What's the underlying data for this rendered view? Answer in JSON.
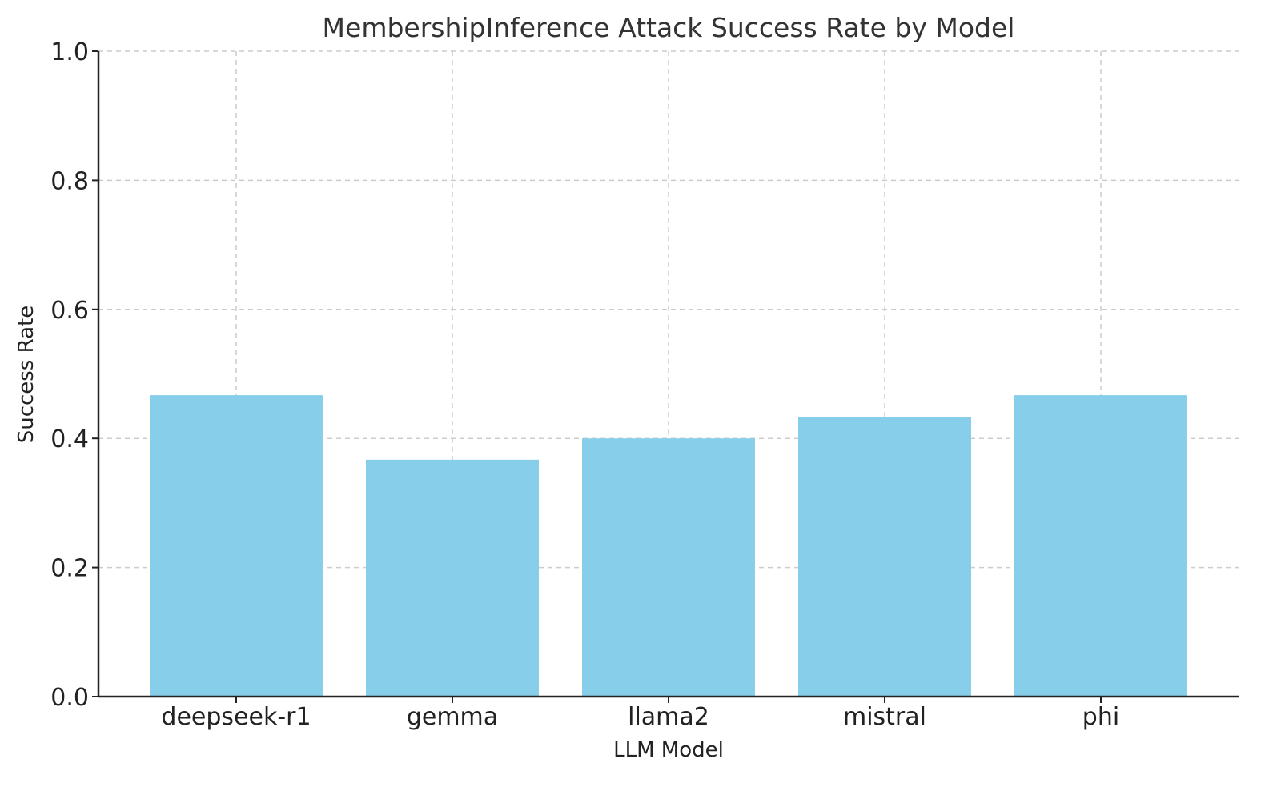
{
  "chart_data": {
    "type": "bar",
    "title": "MembershipInference Attack Success Rate by Model",
    "xlabel": "LLM Model",
    "ylabel": "Success Rate",
    "categories": [
      "deepseek-r1",
      "gemma",
      "llama2",
      "mistral",
      "phi"
    ],
    "values": [
      0.467,
      0.367,
      0.4,
      0.433,
      0.467
    ],
    "ylim": [
      0,
      1.0
    ],
    "yticks": [
      "0.0",
      "0.2",
      "0.4",
      "0.6",
      "0.8",
      "1.0"
    ],
    "grid": true,
    "bar_color": "#87CEEB"
  }
}
